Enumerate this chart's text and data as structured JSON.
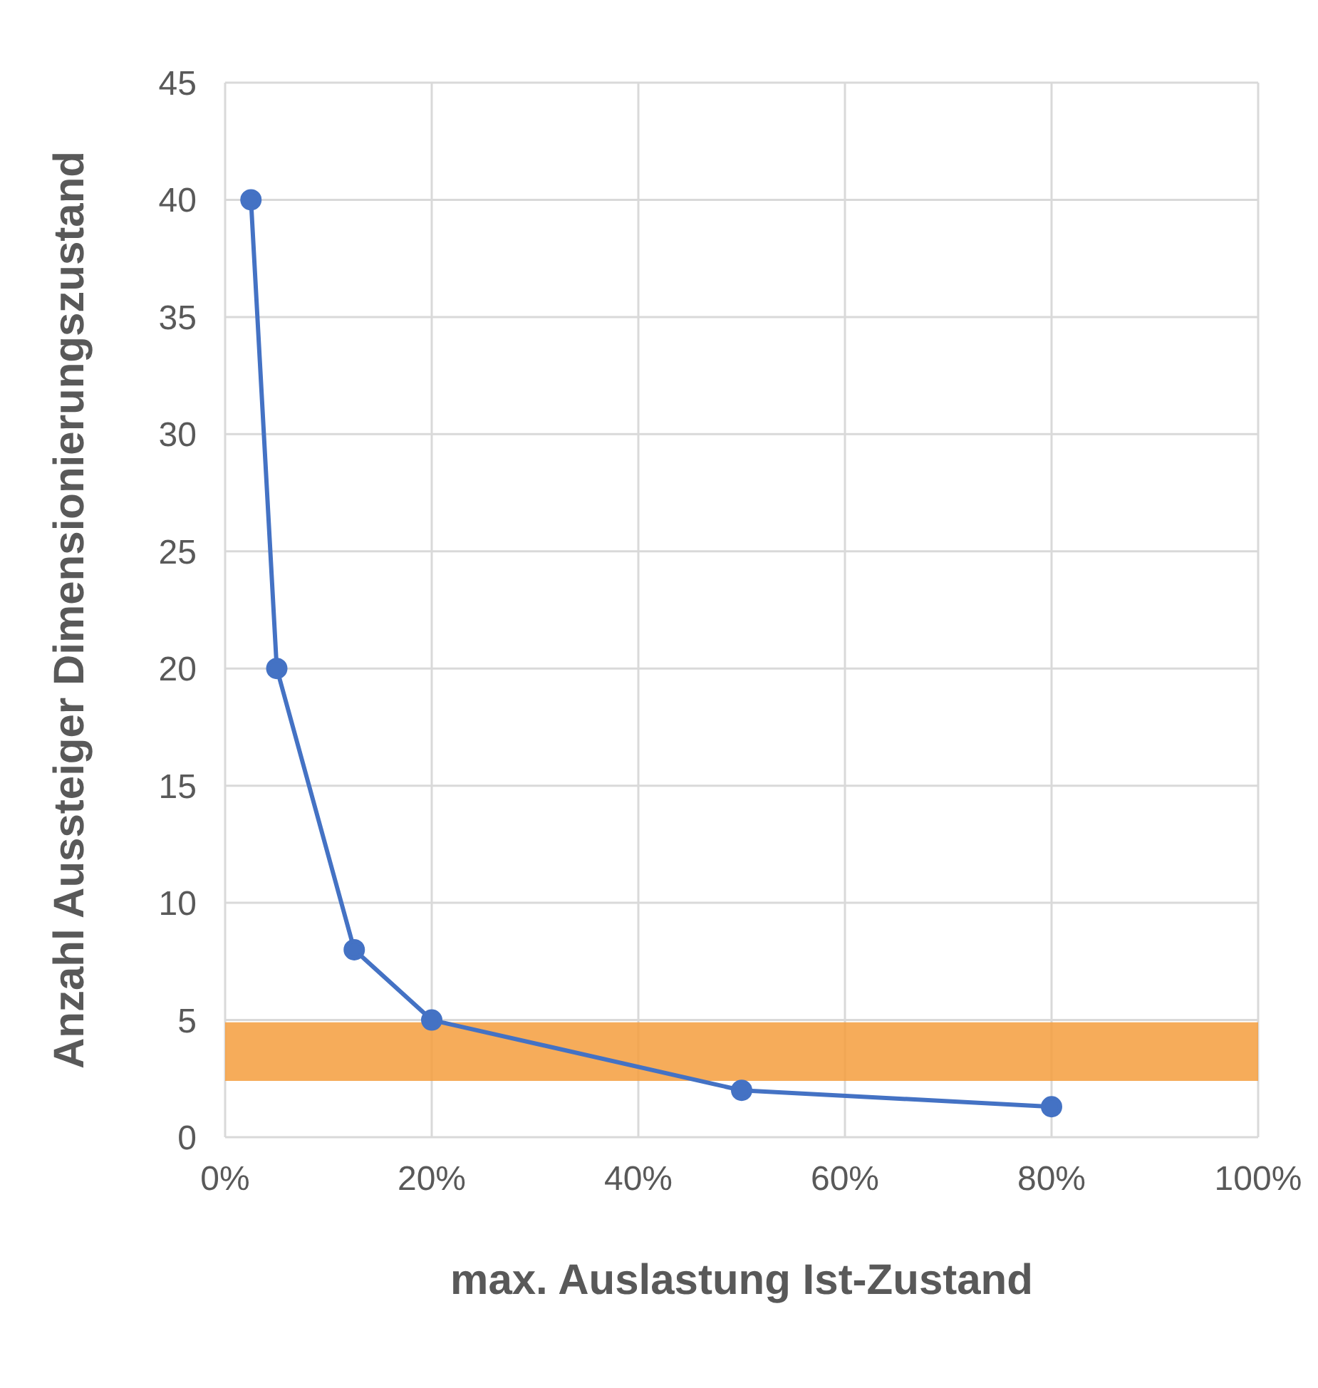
{
  "chart_data": {
    "type": "line",
    "xlabel": "max. Auslastung Ist-Zustand",
    "ylabel": "Anzahl Aussteiger Dimensionierungszustand",
    "x": [
      2.5,
      5,
      12.5,
      20,
      50,
      80
    ],
    "series": [
      {
        "color": "#4472c4",
        "values": [
          40,
          20,
          8,
          5,
          2,
          1.3
        ]
      }
    ],
    "xlim": [
      0,
      100
    ],
    "xticks": [
      {
        "value": 0,
        "label": "0%"
      },
      {
        "value": 20,
        "label": "20%"
      },
      {
        "value": 40,
        "label": "40%"
      },
      {
        "value": 60,
        "label": "60%"
      },
      {
        "value": 80,
        "label": "80%"
      },
      {
        "value": 100,
        "label": "100%"
      }
    ],
    "ylim": [
      0,
      45
    ],
    "yticks": [
      0,
      5,
      10,
      15,
      20,
      25,
      30,
      35,
      40,
      45
    ],
    "bands": [
      {
        "axis": "y",
        "from": 2.4,
        "to": 4.9,
        "color": "#f59d3d"
      }
    ],
    "grid": true,
    "marker": "circle",
    "line_style": "solid"
  }
}
